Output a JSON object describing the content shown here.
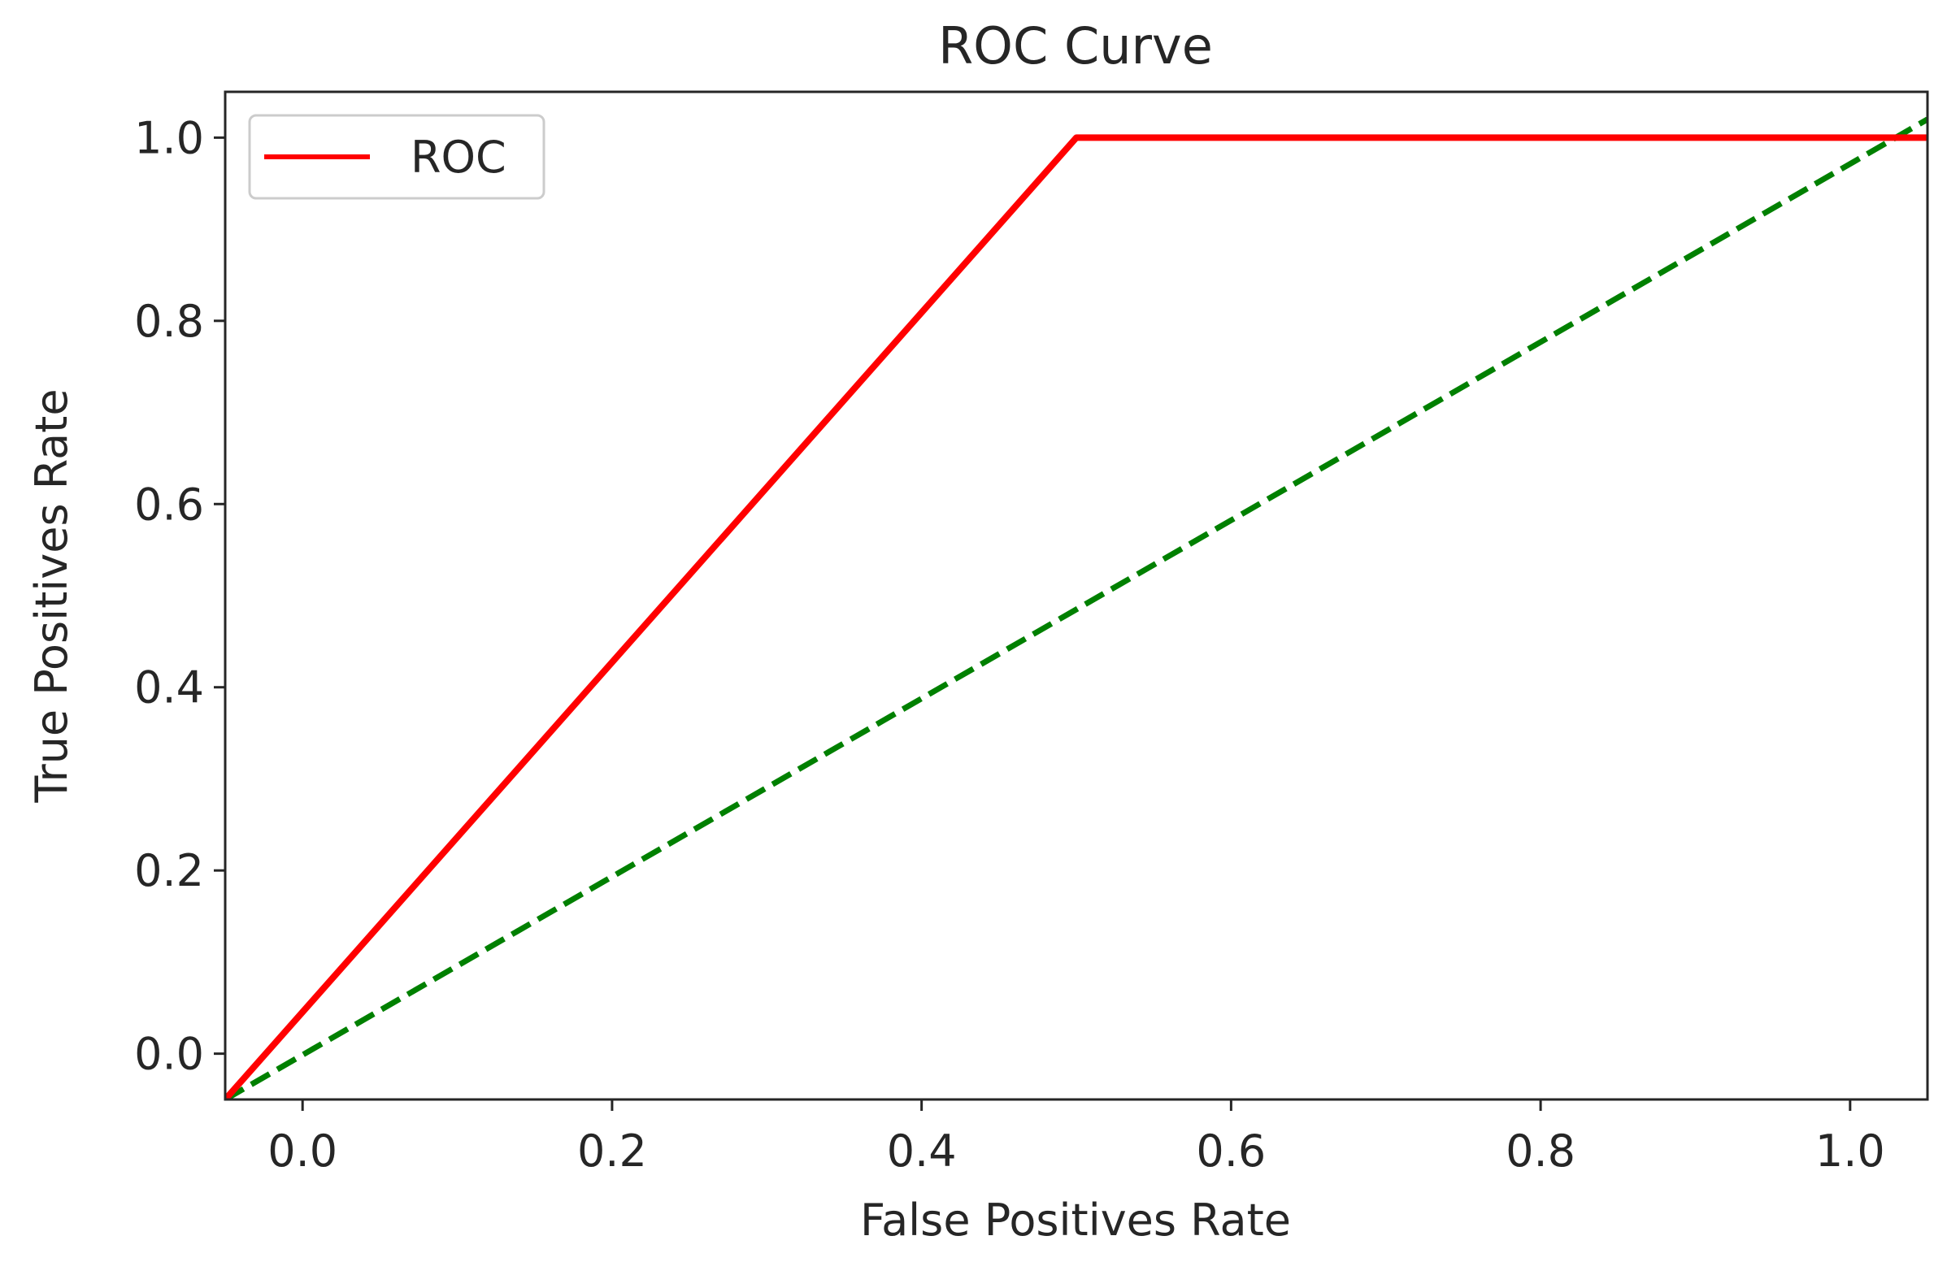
{
  "chart_data": {
    "type": "line",
    "title": "ROC Curve",
    "xlabel": "False Positives Rate",
    "ylabel": "True  Positives Rate",
    "xlim": [
      -0.05,
      1.05
    ],
    "ylim": [
      -0.05,
      1.05
    ],
    "xticks": [
      0.0,
      0.2,
      0.4,
      0.6,
      0.8,
      1.0
    ],
    "yticks": [
      0.0,
      0.2,
      0.4,
      0.6,
      0.8,
      1.0
    ],
    "xtick_labels": [
      "0.0",
      "0.2",
      "0.4",
      "0.6",
      "0.8",
      "1.0"
    ],
    "ytick_labels": [
      "0.0",
      "0.2",
      "0.4",
      "0.6",
      "0.8",
      "1.0"
    ],
    "grid": false,
    "legend_position": "top-left",
    "legend": [
      "ROC"
    ],
    "series": [
      {
        "name": "ROC",
        "color": "#ff0000",
        "style": "solid",
        "x": [
          -0.05,
          0.5,
          1.05
        ],
        "y": [
          -0.05,
          1.0,
          1.0
        ]
      },
      {
        "name": "",
        "color": "#008000",
        "style": "dashed",
        "x": [
          -0.05,
          1.05
        ],
        "y": [
          -0.05,
          1.02
        ]
      }
    ]
  }
}
